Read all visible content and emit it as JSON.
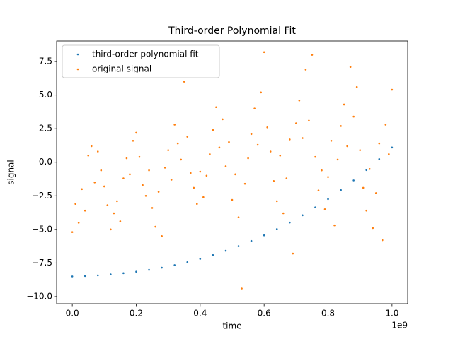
{
  "chart_data": {
    "type": "scatter",
    "title": "Third-order Polynomial Fit",
    "x_label": "time",
    "y_label": "signal",
    "x_offset_label": "1e9",
    "xlim": [
      -49000000,
      1049000000
    ],
    "ylim": [
      -10.53,
      9.03
    ],
    "xticks": [
      {
        "value": 0,
        "label": "0.0"
      },
      {
        "value": 200000000,
        "label": "0.2"
      },
      {
        "value": 400000000,
        "label": "0.4"
      },
      {
        "value": 600000000,
        "label": "0.6"
      },
      {
        "value": 800000000,
        "label": "0.8"
      },
      {
        "value": 1000000000,
        "label": "1.0"
      }
    ],
    "yticks": [
      {
        "value": -10,
        "label": "−10.0"
      },
      {
        "value": -7.5,
        "label": "−7.5"
      },
      {
        "value": -5,
        "label": "−5.0"
      },
      {
        "value": -2.5,
        "label": "−2.5"
      },
      {
        "value": 0,
        "label": "0.0"
      },
      {
        "value": 2.5,
        "label": "2.5"
      },
      {
        "value": 5,
        "label": "5.0"
      },
      {
        "value": 7.5,
        "label": "7.5"
      }
    ],
    "legend": "upper left",
    "series": [
      {
        "name": "third-order polynomial fit",
        "color": "#1f77b4",
        "x": [
          0,
          40000000,
          80000000,
          120000000,
          160000000,
          200000000,
          240000000,
          280000000,
          320000000,
          360000000,
          400000000,
          440000000,
          480000000,
          520000000,
          560000000,
          600000000,
          640000000,
          680000000,
          720000000,
          760000000,
          800000000,
          840000000,
          880000000,
          920000000,
          960000000,
          1000000000
        ],
        "values": [
          -8.5,
          -8.47,
          -8.42,
          -8.35,
          -8.26,
          -8.15,
          -8.01,
          -7.85,
          -7.66,
          -7.44,
          -7.19,
          -6.91,
          -6.59,
          -6.25,
          -5.86,
          -5.44,
          -4.98,
          -4.49,
          -3.95,
          -3.36,
          -2.74,
          -2.07,
          -1.35,
          -0.58,
          0.23,
          1.1
        ]
      },
      {
        "name": "original signal",
        "color": "#ff7f0e",
        "x": [
          0,
          10000000,
          20000000,
          30000000,
          40000000,
          50000000,
          60000000,
          70000000,
          80000000,
          90000000,
          100000000,
          110000000,
          120000000,
          130000000,
          140000000,
          150000000,
          160000000,
          170000000,
          180000000,
          190000000,
          200000000,
          210000000,
          220000000,
          230000000,
          240000000,
          250000000,
          260000000,
          270000000,
          280000000,
          290000000,
          300000000,
          310000000,
          320000000,
          330000000,
          340000000,
          350000000,
          360000000,
          370000000,
          380000000,
          390000000,
          400000000,
          410000000,
          420000000,
          430000000,
          440000000,
          450000000,
          460000000,
          470000000,
          480000000,
          490000000,
          500000000,
          510000000,
          520000000,
          530000000,
          540000000,
          550000000,
          560000000,
          570000000,
          580000000,
          590000000,
          600000000,
          610000000,
          620000000,
          630000000,
          640000000,
          650000000,
          660000000,
          670000000,
          680000000,
          690000000,
          700000000,
          710000000,
          720000000,
          730000000,
          740000000,
          750000000,
          760000000,
          770000000,
          780000000,
          790000000,
          800000000,
          810000000,
          820000000,
          830000000,
          840000000,
          850000000,
          860000000,
          870000000,
          880000000,
          890000000,
          900000000,
          910000000,
          920000000,
          930000000,
          940000000,
          950000000,
          960000000,
          970000000,
          980000000,
          990000000,
          1000000000
        ],
        "values": [
          -5.2,
          -3.1,
          -4.5,
          -2.0,
          -3.6,
          0.5,
          1.2,
          -1.5,
          0.8,
          -0.6,
          -1.8,
          -3.2,
          -5.0,
          -3.8,
          -2.9,
          -4.4,
          -1.2,
          0.3,
          -0.9,
          1.6,
          2.2,
          0.4,
          -1.7,
          -2.5,
          -0.6,
          -3.4,
          -4.8,
          -2.2,
          -5.5,
          -0.4,
          0.9,
          -1.3,
          2.8,
          1.4,
          0.2,
          6.0,
          1.9,
          -0.8,
          -1.9,
          -3.1,
          -0.7,
          -2.6,
          -1.0,
          0.6,
          2.4,
          4.1,
          1.1,
          3.2,
          -0.3,
          1.5,
          -2.8,
          -0.9,
          -4.1,
          -9.4,
          -1.6,
          0.3,
          2.1,
          4.0,
          1.3,
          5.2,
          8.2,
          2.6,
          0.8,
          -1.4,
          -2.9,
          0.5,
          -3.8,
          -1.2,
          1.7,
          -6.8,
          2.9,
          4.6,
          1.8,
          6.9,
          3.1,
          8.0,
          0.4,
          -2.1,
          -0.6,
          -3.5,
          -1.1,
          1.6,
          -4.7,
          0.2,
          2.7,
          4.3,
          1.2,
          7.1,
          3.4,
          5.6,
          0.9,
          -1.9,
          -3.6,
          -0.5,
          -4.9,
          -2.3,
          1.4,
          -5.8,
          2.8,
          0.6,
          5.4
        ]
      }
    ]
  }
}
